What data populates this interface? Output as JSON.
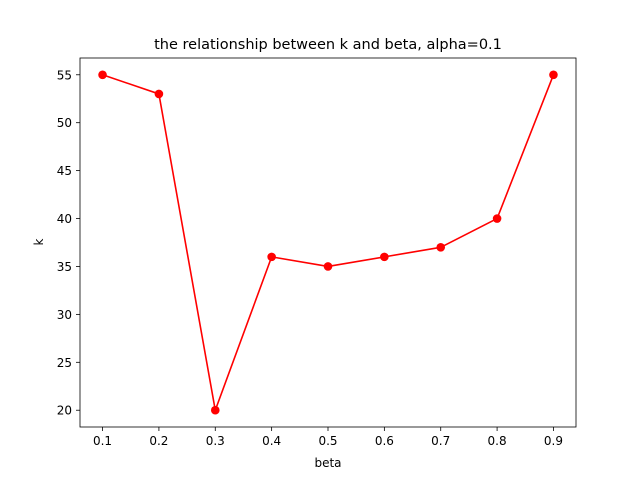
{
  "chart_data": {
    "type": "line",
    "title": "the relationship between k and beta, alpha=0.1",
    "xlabel": "beta",
    "ylabel": "k",
    "x": [
      0.1,
      0.2,
      0.3,
      0.4,
      0.5,
      0.6,
      0.7,
      0.8,
      0.9
    ],
    "series": [
      {
        "name": "k",
        "values": [
          55,
          53,
          20,
          36,
          35,
          36,
          37,
          40,
          55
        ],
        "color": "#ff0000",
        "marker": "circle"
      }
    ],
    "xlim": [
      0.06,
      0.94
    ],
    "ylim": [
      18.25,
      56.75
    ],
    "xticks": [
      "0.1",
      "0.2",
      "0.3",
      "0.4",
      "0.5",
      "0.6",
      "0.7",
      "0.8",
      "0.9"
    ],
    "xtick_values": [
      0.1,
      0.2,
      0.3,
      0.4,
      0.5,
      0.6,
      0.7,
      0.8,
      0.9
    ],
    "yticks": [
      "20",
      "25",
      "30",
      "35",
      "40",
      "45",
      "50",
      "55"
    ],
    "ytick_values": [
      20,
      25,
      30,
      35,
      40,
      45,
      50,
      55
    ],
    "grid": false,
    "legend": "none"
  }
}
